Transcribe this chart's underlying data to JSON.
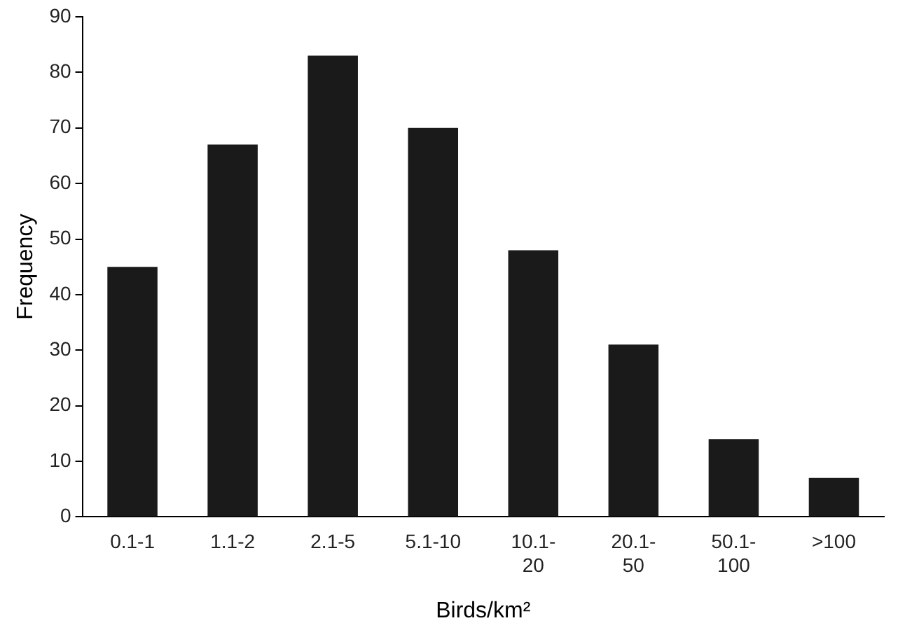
{
  "chart_data": {
    "type": "bar",
    "xlabel": "Birds/km²",
    "ylabel": "Frequency",
    "categories": [
      "0.1-1",
      "1.1-2",
      "2.1-5",
      "5.1-10",
      "10.1-20",
      "20.1-50",
      "50.1-100",
      ">100"
    ],
    "values": [
      45,
      67,
      83,
      70,
      48,
      31,
      14,
      7
    ],
    "color": "#1a1a1a",
    "ylim": [
      0,
      90
    ],
    "yticks": [
      0,
      10,
      20,
      30,
      40,
      50,
      60,
      70,
      80,
      90
    ],
    "grid": false,
    "legend": false
  }
}
